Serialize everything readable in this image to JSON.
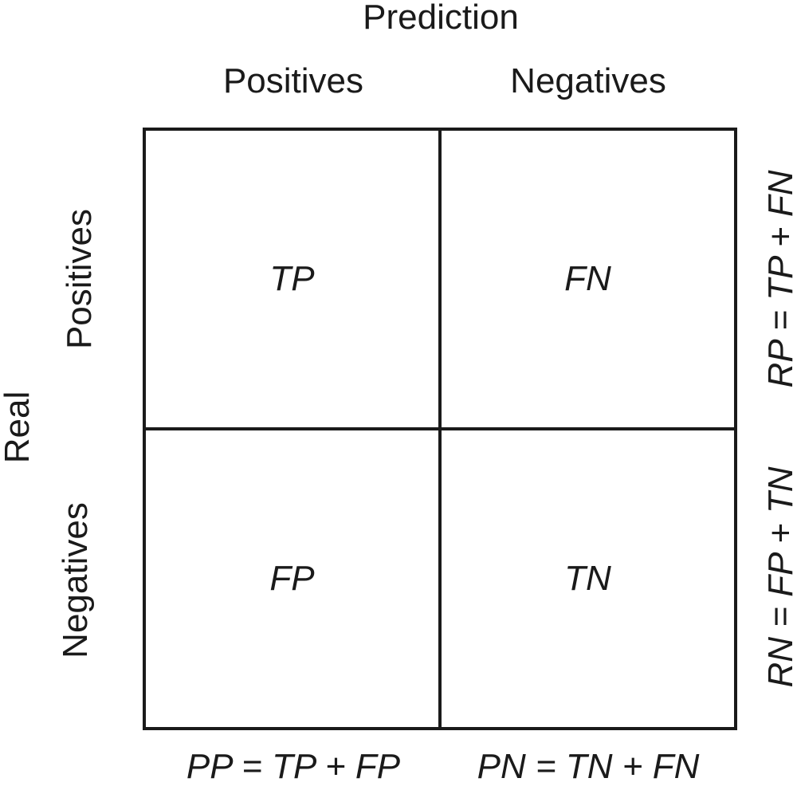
{
  "prediction_axis": {
    "title": "Prediction",
    "columns": [
      "Positives",
      "Negatives"
    ]
  },
  "real_axis": {
    "title": "Real",
    "rows": [
      "Positives",
      "Negatives"
    ]
  },
  "cells": {
    "tp": "TP",
    "fn": "FN",
    "fp": "FP",
    "tn": "TN"
  },
  "row_formulas": {
    "rp": "RP = TP + FN",
    "rn": "RN = FP + TN"
  },
  "column_formulas": {
    "pp": "PP = TP + FP",
    "pn": "PN = TN + FN"
  },
  "colors": {
    "line": "#1a1a1a",
    "background": "#ffffff"
  }
}
